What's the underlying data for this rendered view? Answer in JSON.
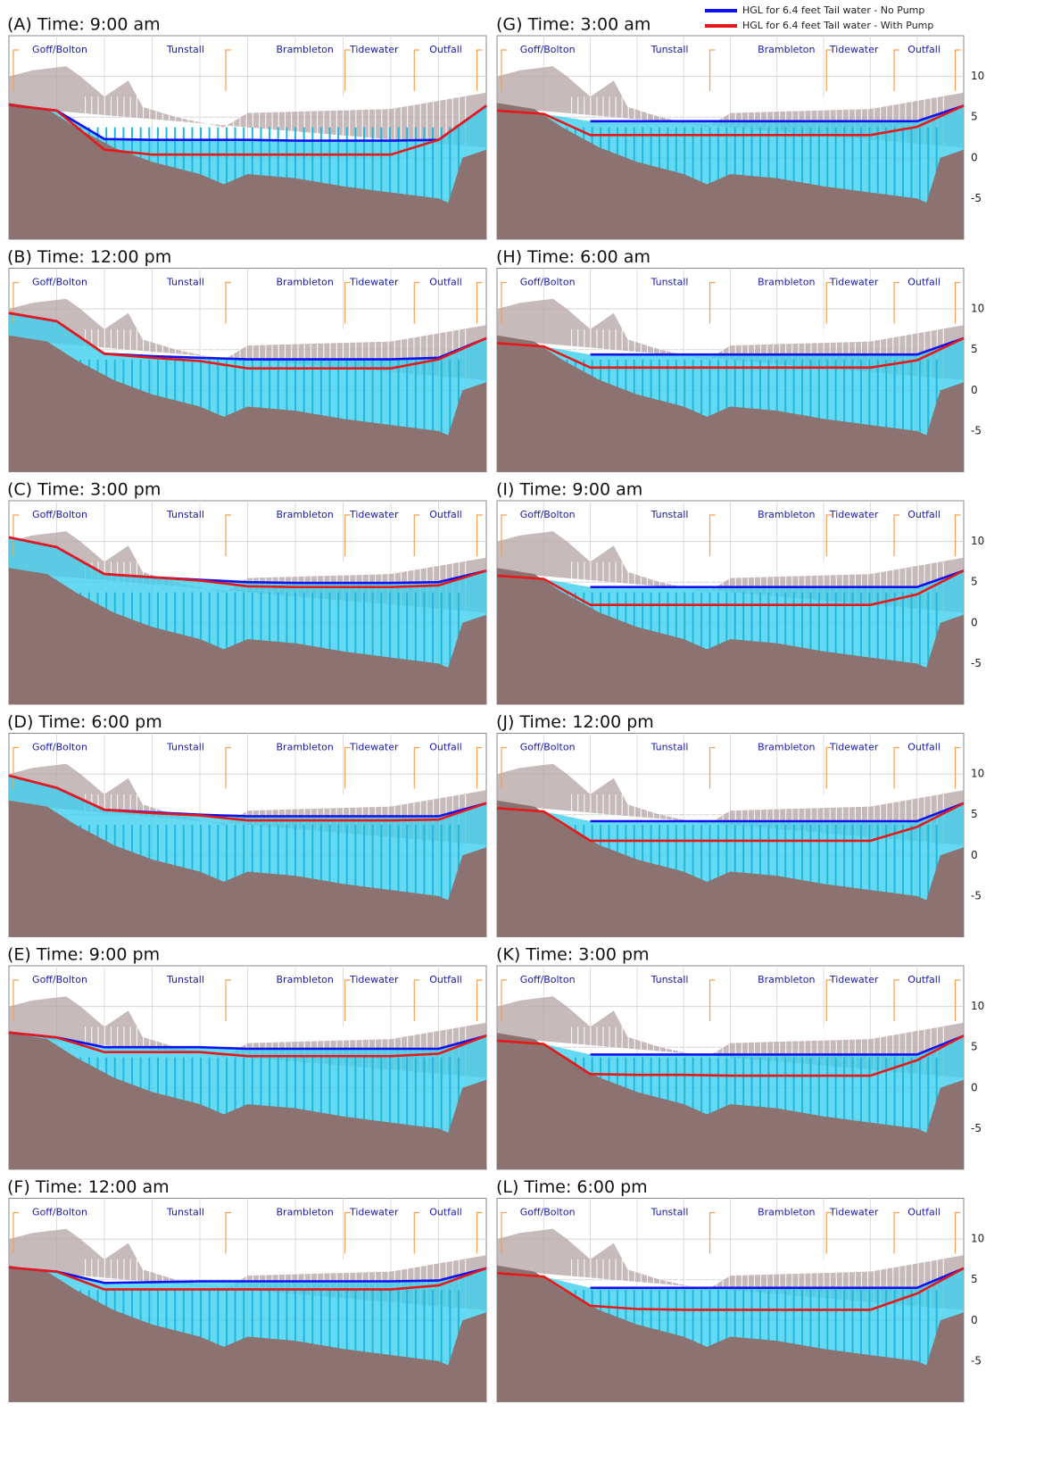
{
  "legend": [
    "HGL for 6.4 feet Tail water - No Pump",
    "HGL for 6.4 feet Tail water - With Pump"
  ],
  "chart_data": [
    {
      "type": "line",
      "title": "(A) Time: 9:00 am",
      "annotations": [
        "Goff/Bolton",
        "Tunstall",
        "Brambleton",
        "Tidewater",
        "Outfall"
      ],
      "categories": [
        null,
        null,
        null,
        null,
        null,
        null,
        null,
        null,
        null,
        null,
        null
      ],
      "series": [
        {
          "color": "#1010f0",
          "values": [
            6.5,
            5.8,
            2.3,
            2.2,
            2.2,
            2.2,
            2.1,
            2.1,
            2.1,
            2.2,
            6.4
          ]
        },
        {
          "color": "#e81818",
          "values": [
            6.5,
            5.8,
            1.0,
            0.4,
            0.4,
            0.4,
            0.4,
            0.4,
            0.4,
            2.2,
            6.4
          ]
        }
      ],
      "ylim": [
        -10,
        15
      ],
      "yticks": [
        -5,
        0,
        5,
        10
      ],
      "grid": true,
      "tick_labels": false
    },
    {
      "type": "line",
      "title": "(B) Time: 12:00 pm",
      "annotations": [
        "Goff/Bolton",
        "Tunstall",
        "Brambleton",
        "Tidewater",
        "Outfall"
      ],
      "categories": [
        null,
        null,
        null,
        null,
        null,
        null,
        null,
        null,
        null,
        null,
        null
      ],
      "series": [
        {
          "color": "#1010f0",
          "values": [
            9.5,
            8.5,
            4.5,
            4.2,
            4.0,
            3.8,
            3.8,
            3.8,
            3.8,
            4.0,
            6.4
          ]
        },
        {
          "color": "#e81818",
          "values": [
            9.5,
            8.5,
            4.5,
            4.0,
            3.6,
            2.7,
            2.7,
            2.7,
            2.7,
            3.8,
            6.4
          ]
        }
      ],
      "ylim": [
        -10,
        15
      ],
      "yticks": [
        -5,
        0,
        5,
        10
      ],
      "grid": true,
      "tick_labels": false
    },
    {
      "type": "line",
      "title": "(C) Time: 3:00 pm",
      "annotations": [
        "Goff/Bolton",
        "Tunstall",
        "Brambleton",
        "Tidewater",
        "Outfall"
      ],
      "categories": [
        null,
        null,
        null,
        null,
        null,
        null,
        null,
        null,
        null,
        null,
        null
      ],
      "series": [
        {
          "color": "#1010f0",
          "values": [
            10.5,
            9.3,
            6.0,
            5.6,
            5.3,
            5.0,
            4.9,
            4.9,
            4.9,
            5.0,
            6.4
          ]
        },
        {
          "color": "#e81818",
          "values": [
            10.5,
            9.3,
            6.0,
            5.6,
            5.2,
            4.5,
            4.4,
            4.4,
            4.4,
            4.6,
            6.4
          ]
        }
      ],
      "ylim": [
        -10,
        15
      ],
      "yticks": [
        -5,
        0,
        5,
        10
      ],
      "grid": true,
      "tick_labels": false
    },
    {
      "type": "line",
      "title": "(D) Time: 6:00 pm",
      "annotations": [
        "Goff/Bolton",
        "Tunstall",
        "Brambleton",
        "Tidewater",
        "Outfall"
      ],
      "categories": [
        null,
        null,
        null,
        null,
        null,
        null,
        null,
        null,
        null,
        null,
        null
      ],
      "series": [
        {
          "color": "#1010f0",
          "values": [
            9.8,
            8.3,
            5.6,
            5.3,
            5.0,
            4.8,
            4.8,
            4.8,
            4.8,
            4.8,
            6.4
          ]
        },
        {
          "color": "#e81818",
          "values": [
            9.8,
            8.3,
            5.6,
            5.2,
            4.9,
            4.3,
            4.3,
            4.3,
            4.3,
            4.4,
            6.4
          ]
        }
      ],
      "ylim": [
        -10,
        15
      ],
      "yticks": [
        -5,
        0,
        5,
        10
      ],
      "grid": true,
      "tick_labels": false
    },
    {
      "type": "line",
      "title": "(E) Time: 9:00 pm",
      "annotations": [
        "Goff/Bolton",
        "Tunstall",
        "Brambleton",
        "Tidewater",
        "Outfall"
      ],
      "categories": [
        null,
        null,
        null,
        null,
        null,
        null,
        null,
        null,
        null,
        null,
        null
      ],
      "series": [
        {
          "color": "#1010f0",
          "values": [
            6.8,
            6.2,
            5.0,
            5.0,
            5.0,
            4.8,
            4.8,
            4.8,
            4.8,
            4.8,
            6.4
          ]
        },
        {
          "color": "#e81818",
          "values": [
            6.8,
            6.2,
            4.4,
            4.4,
            4.4,
            3.9,
            3.9,
            3.9,
            3.9,
            4.2,
            6.4
          ]
        }
      ],
      "ylim": [
        -10,
        15
      ],
      "yticks": [
        -5,
        0,
        5,
        10
      ],
      "grid": true,
      "tick_labels": false
    },
    {
      "type": "line",
      "title": "(F) Time: 12:00 am",
      "annotations": [
        "Goff/Bolton",
        "Tunstall",
        "Brambleton",
        "Tidewater",
        "Outfall"
      ],
      "categories": [
        null,
        null,
        null,
        null,
        null,
        null,
        null,
        null,
        null,
        null,
        null
      ],
      "series": [
        {
          "color": "#1010f0",
          "values": [
            6.5,
            6.0,
            4.6,
            4.7,
            4.8,
            4.8,
            4.8,
            4.8,
            4.8,
            4.9,
            6.4
          ]
        },
        {
          "color": "#e81818",
          "values": [
            6.5,
            6.0,
            3.8,
            3.8,
            3.8,
            3.8,
            3.8,
            3.8,
            3.8,
            4.3,
            6.4
          ]
        }
      ],
      "ylim": [
        -10,
        15
      ],
      "yticks": [
        -5,
        0,
        5,
        10
      ],
      "grid": true,
      "tick_labels": false
    },
    {
      "type": "line",
      "title": "(G) Time: 3:00 am",
      "annotations": [
        "Goff/Bolton",
        "Tunstall",
        "Brambleton",
        "Tidewater",
        "Outfall"
      ],
      "categories": [
        null,
        null,
        null,
        null,
        null,
        null,
        null,
        null,
        null,
        null,
        null
      ],
      "series": [
        {
          "color": "#1010f0",
          "values": [
            null,
            null,
            4.5,
            4.5,
            4.5,
            4.5,
            4.5,
            4.5,
            4.5,
            4.5,
            6.4
          ]
        },
        {
          "color": "#e81818",
          "values": [
            5.8,
            5.4,
            2.8,
            2.8,
            2.8,
            2.8,
            2.8,
            2.8,
            2.8,
            3.8,
            6.4
          ]
        }
      ],
      "ylim": [
        -10,
        15
      ],
      "yticks": [
        -5,
        0,
        5,
        10
      ],
      "grid": true,
      "tick_labels": true
    },
    {
      "type": "line",
      "title": "(H) Time: 6:00 am",
      "annotations": [
        "Goff/Bolton",
        "Tunstall",
        "Brambleton",
        "Tidewater",
        "Outfall"
      ],
      "categories": [
        null,
        null,
        null,
        null,
        null,
        null,
        null,
        null,
        null,
        null,
        null
      ],
      "series": [
        {
          "color": "#1010f0",
          "values": [
            null,
            null,
            4.4,
            4.4,
            4.4,
            4.4,
            4.4,
            4.4,
            4.4,
            4.4,
            6.4
          ]
        },
        {
          "color": "#e81818",
          "values": [
            5.8,
            5.4,
            2.8,
            2.8,
            2.8,
            2.8,
            2.8,
            2.8,
            2.8,
            3.7,
            6.4
          ]
        }
      ],
      "ylim": [
        -10,
        15
      ],
      "yticks": [
        -5,
        0,
        5,
        10
      ],
      "grid": true,
      "tick_labels": true
    },
    {
      "type": "line",
      "title": "(I) Time: 9:00 am",
      "annotations": [
        "Goff/Bolton",
        "Tunstall",
        "Brambleton",
        "Tidewater",
        "Outfall"
      ],
      "categories": [
        null,
        null,
        null,
        null,
        null,
        null,
        null,
        null,
        null,
        null,
        null
      ],
      "series": [
        {
          "color": "#1010f0",
          "values": [
            null,
            null,
            4.4,
            4.4,
            4.4,
            4.4,
            4.4,
            4.4,
            4.4,
            4.4,
            6.4
          ]
        },
        {
          "color": "#e81818",
          "values": [
            5.8,
            5.4,
            2.2,
            2.2,
            2.2,
            2.2,
            2.2,
            2.2,
            2.2,
            3.5,
            6.4
          ]
        }
      ],
      "ylim": [
        -10,
        15
      ],
      "yticks": [
        -5,
        0,
        5,
        10
      ],
      "grid": true,
      "tick_labels": true
    },
    {
      "type": "line",
      "title": "(J) Time: 12:00 pm",
      "annotations": [
        "Goff/Bolton",
        "Tunstall",
        "Brambleton",
        "Tidewater",
        "Outfall"
      ],
      "categories": [
        null,
        null,
        null,
        null,
        null,
        null,
        null,
        null,
        null,
        null,
        null
      ],
      "series": [
        {
          "color": "#1010f0",
          "values": [
            null,
            null,
            4.2,
            4.2,
            4.2,
            4.2,
            4.2,
            4.2,
            4.2,
            4.2,
            6.4
          ]
        },
        {
          "color": "#e81818",
          "values": [
            5.8,
            5.4,
            1.8,
            1.8,
            1.8,
            1.8,
            1.8,
            1.8,
            1.8,
            3.5,
            6.4
          ]
        }
      ],
      "ylim": [
        -10,
        15
      ],
      "yticks": [
        -5,
        0,
        5,
        10
      ],
      "grid": true,
      "tick_labels": true
    },
    {
      "type": "line",
      "title": "(K) Time: 3:00 pm",
      "annotations": [
        "Goff/Bolton",
        "Tunstall",
        "Brambleton",
        "Tidewater",
        "Outfall"
      ],
      "categories": [
        null,
        null,
        null,
        null,
        null,
        null,
        null,
        null,
        null,
        null,
        null
      ],
      "series": [
        {
          "color": "#1010f0",
          "values": [
            null,
            null,
            4.1,
            4.1,
            4.1,
            4.1,
            4.1,
            4.1,
            4.1,
            4.1,
            6.4
          ]
        },
        {
          "color": "#e81818",
          "values": [
            5.8,
            5.4,
            1.7,
            1.6,
            1.6,
            1.5,
            1.5,
            1.5,
            1.5,
            3.4,
            6.4
          ]
        }
      ],
      "ylim": [
        -10,
        15
      ],
      "yticks": [
        -5,
        0,
        5,
        10
      ],
      "grid": true,
      "tick_labels": true
    },
    {
      "type": "line",
      "title": "(L) Time: 6:00 pm",
      "annotations": [
        "Goff/Bolton",
        "Tunstall",
        "Brambleton",
        "Tidewater",
        "Outfall"
      ],
      "categories": [
        null,
        null,
        null,
        null,
        null,
        null,
        null,
        null,
        null,
        null,
        null
      ],
      "series": [
        {
          "color": "#1010f0",
          "values": [
            null,
            null,
            4.0,
            4.0,
            4.0,
            4.0,
            4.0,
            4.0,
            4.0,
            4.0,
            6.4
          ]
        },
        {
          "color": "#e81818",
          "values": [
            5.8,
            5.4,
            1.8,
            1.4,
            1.3,
            1.3,
            1.3,
            1.3,
            1.3,
            3.3,
            6.4
          ]
        }
      ],
      "ylim": [
        -10,
        15
      ],
      "yticks": [
        -5,
        0,
        5,
        10
      ],
      "grid": true,
      "tick_labels": true
    }
  ]
}
